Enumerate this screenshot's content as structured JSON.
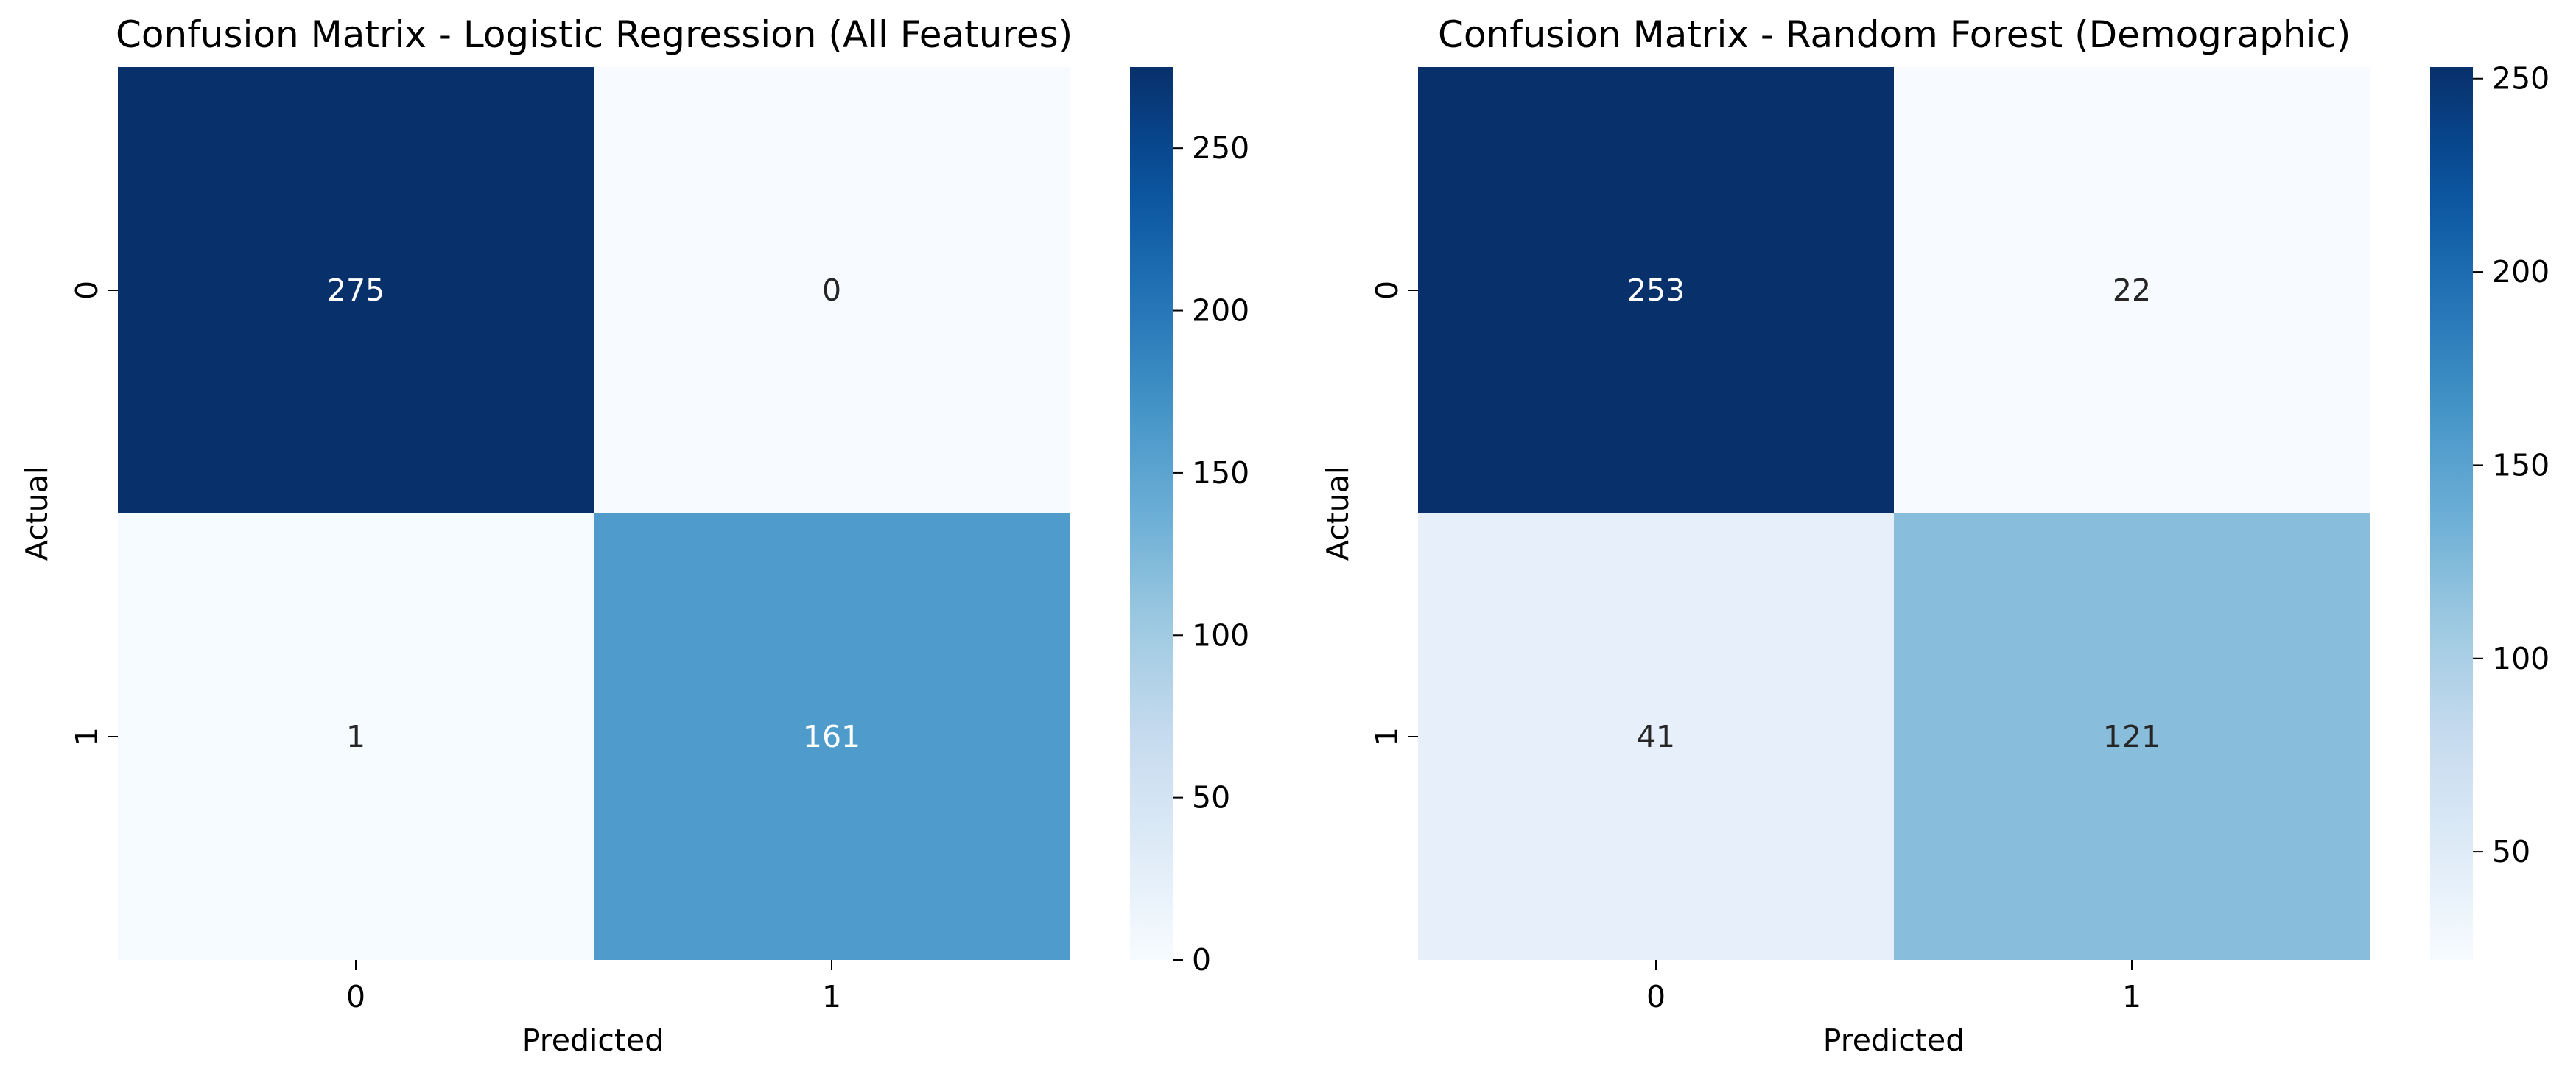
{
  "chart_data": [
    {
      "type": "heatmap",
      "title": "Confusion Matrix - Logistic Regression (All Features)",
      "xlabel": "Predicted",
      "ylabel": "Actual",
      "x_categories": [
        "0",
        "1"
      ],
      "y_categories": [
        "0",
        "1"
      ],
      "values": [
        [
          275,
          0
        ],
        [
          1,
          161
        ]
      ],
      "colormap": "Blues",
      "colorbar": {
        "range": [
          0,
          275
        ],
        "ticks": [
          0,
          50,
          100,
          150,
          200,
          250
        ]
      }
    },
    {
      "type": "heatmap",
      "title": "Confusion Matrix - Random Forest (Demographic)",
      "xlabel": "Predicted",
      "ylabel": "Actual",
      "x_categories": [
        "0",
        "1"
      ],
      "y_categories": [
        "0",
        "1"
      ],
      "values": [
        [
          253,
          22
        ],
        [
          41,
          121
        ]
      ],
      "colormap": "Blues",
      "colorbar": {
        "range": [
          22,
          253
        ],
        "ticks": [
          50,
          100,
          150,
          200,
          250
        ]
      }
    }
  ]
}
